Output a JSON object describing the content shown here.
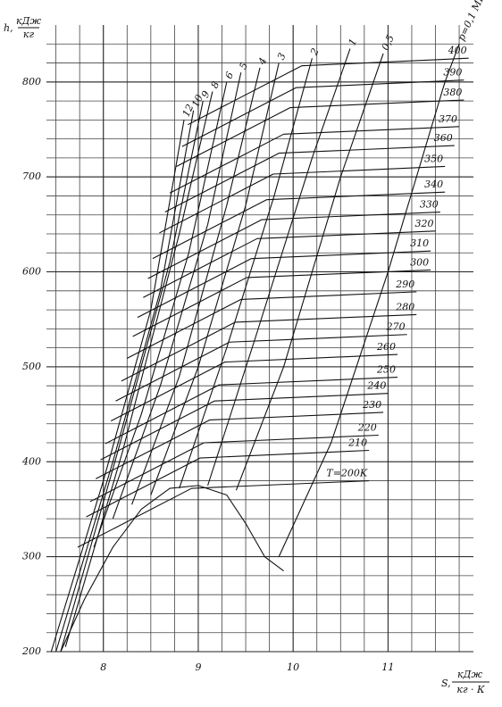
{
  "chart_data": {
    "type": "line",
    "y_label": {
      "symbol": "h,",
      "num": "кДж",
      "den": "кг"
    },
    "x_label": {
      "symbol": "S,",
      "num": "кДж",
      "den": "кг · К"
    },
    "xlim": [
      7.4,
      11.9
    ],
    "ylim": [
      200,
      860
    ],
    "xticks": [
      8,
      9,
      10,
      11
    ],
    "yticks": [
      200,
      300,
      400,
      500,
      600,
      700,
      800
    ],
    "xminor": [
      7.5,
      7.75,
      8,
      8.25,
      8.5,
      8.75,
      9,
      9.25,
      9.5,
      9.75,
      10,
      10.25,
      10.5,
      10.75,
      11,
      11.25,
      11.5,
      11.75
    ],
    "yminor": [
      220,
      240,
      260,
      280,
      300,
      320,
      340,
      360,
      380,
      400,
      420,
      440,
      460,
      480,
      500,
      520,
      540,
      560,
      580,
      600,
      620,
      640,
      660,
      680,
      700,
      720,
      740,
      760,
      780,
      800,
      820,
      840
    ],
    "color": "#111111",
    "saturation": {
      "x": [
        7.55,
        7.8,
        8.1,
        8.4,
        8.7,
        9.0,
        9.3,
        9.5,
        9.7,
        9.9
      ],
      "values": [
        200,
        255,
        310,
        350,
        372,
        375,
        365,
        335,
        300,
        285
      ]
    },
    "isobars": [
      {
        "name": "12",
        "x": [
          7.45,
          8.0,
          8.5,
          8.85
        ],
        "values": [
          200,
          380,
          560,
          760
        ]
      },
      {
        "name": "10",
        "x": [
          7.5,
          8.1,
          8.6,
          8.95
        ],
        "values": [
          200,
          400,
          580,
          770
        ]
      },
      {
        "name": "9",
        "x": [
          7.55,
          8.15,
          8.7,
          9.05
        ],
        "values": [
          200,
          410,
          610,
          780
        ]
      },
      {
        "name": "8",
        "x": [
          7.6,
          8.2,
          8.8,
          9.15
        ],
        "values": [
          205,
          410,
          640,
          790
        ]
      },
      {
        "name": "6",
        "x": [
          7.9,
          8.4,
          8.9,
          9.3
        ],
        "values": [
          310,
          450,
          620,
          800
        ]
      },
      {
        "name": "5",
        "x": [
          8.1,
          8.6,
          9.1,
          9.45
        ],
        "values": [
          340,
          480,
          650,
          810
        ]
      },
      {
        "name": "4",
        "x": [
          8.3,
          8.8,
          9.3,
          9.65
        ],
        "values": [
          355,
          490,
          670,
          815
        ]
      },
      {
        "name": "3",
        "x": [
          8.5,
          9.0,
          9.5,
          9.85
        ],
        "values": [
          365,
          500,
          670,
          820
        ]
      },
      {
        "name": "2",
        "x": [
          8.8,
          9.3,
          9.8,
          10.2
        ],
        "values": [
          372,
          520,
          680,
          825
        ]
      },
      {
        "name": "1",
        "x": [
          9.1,
          9.6,
          10.2,
          10.6
        ],
        "values": [
          375,
          530,
          720,
          835
        ]
      },
      {
        "name": "0,5",
        "x": [
          9.4,
          9.9,
          10.5,
          10.95
        ],
        "values": [
          370,
          500,
          700,
          830
        ]
      },
      {
        "name": "p=0,1 МПа",
        "x": [
          9.85,
          10.4,
          11.0,
          11.6,
          11.75
        ],
        "values": [
          300,
          420,
          600,
          800,
          840
        ]
      }
    ],
    "isotherms": [
      {
        "name": "T=200K",
        "x": [
          7.73,
          8.93,
          10.8
        ],
        "values": [
          310,
          372,
          380
        ]
      },
      {
        "name": "210",
        "x": [
          7.82,
          9.02,
          10.8
        ],
        "values": [
          342,
          404,
          412
        ]
      },
      {
        "name": "220",
        "x": [
          7.86,
          9.06,
          10.9
        ],
        "values": [
          358,
          420,
          428
        ]
      },
      {
        "name": "230",
        "x": [
          7.92,
          9.12,
          10.95
        ],
        "values": [
          382,
          444,
          452
        ]
      },
      {
        "name": "240",
        "x": [
          7.97,
          9.17,
          11.0
        ],
        "values": [
          402,
          464,
          472
        ]
      },
      {
        "name": "250",
        "x": [
          8.02,
          9.22,
          11.1
        ],
        "values": [
          419,
          481,
          489
        ]
      },
      {
        "name": "260",
        "x": [
          8.08,
          9.28,
          11.1
        ],
        "values": [
          443,
          505,
          513
        ]
      },
      {
        "name": "270",
        "x": [
          8.13,
          9.33,
          11.2
        ],
        "values": [
          464,
          526,
          534
        ]
      },
      {
        "name": "280",
        "x": [
          8.19,
          9.39,
          11.3
        ],
        "values": [
          485,
          547,
          555
        ]
      },
      {
        "name": "290",
        "x": [
          8.25,
          9.45,
          11.3
        ],
        "values": [
          509,
          571,
          579
        ]
      },
      {
        "name": "300",
        "x": [
          8.31,
          9.51,
          11.45
        ],
        "values": [
          532,
          594,
          602
        ]
      },
      {
        "name": "310",
        "x": [
          8.36,
          9.56,
          11.45
        ],
        "values": [
          552,
          614,
          622
        ]
      },
      {
        "name": "320",
        "x": [
          8.42,
          9.62,
          11.5
        ],
        "values": [
          573,
          635,
          643
        ]
      },
      {
        "name": "330",
        "x": [
          8.47,
          9.67,
          11.55
        ],
        "values": [
          593,
          655,
          663
        ]
      },
      {
        "name": "340",
        "x": [
          8.52,
          9.72,
          11.6
        ],
        "values": [
          614,
          676,
          684
        ]
      },
      {
        "name": "350",
        "x": [
          8.59,
          9.79,
          11.6
        ],
        "values": [
          641,
          703,
          711
        ]
      },
      {
        "name": "360",
        "x": [
          8.65,
          9.85,
          11.7
        ],
        "values": [
          663,
          725,
          733
        ]
      },
      {
        "name": "370",
        "x": [
          8.7,
          9.9,
          11.75
        ],
        "values": [
          683,
          745,
          753
        ]
      },
      {
        "name": "380",
        "x": [
          8.77,
          9.97,
          11.8
        ],
        "values": [
          711,
          773,
          781
        ]
      },
      {
        "name": "390",
        "x": [
          8.83,
          10.03,
          11.8
        ],
        "values": [
          732,
          794,
          802
        ]
      },
      {
        "name": "400",
        "x": [
          8.89,
          10.09,
          11.85
        ],
        "values": [
          755,
          817,
          825
        ]
      }
    ]
  }
}
